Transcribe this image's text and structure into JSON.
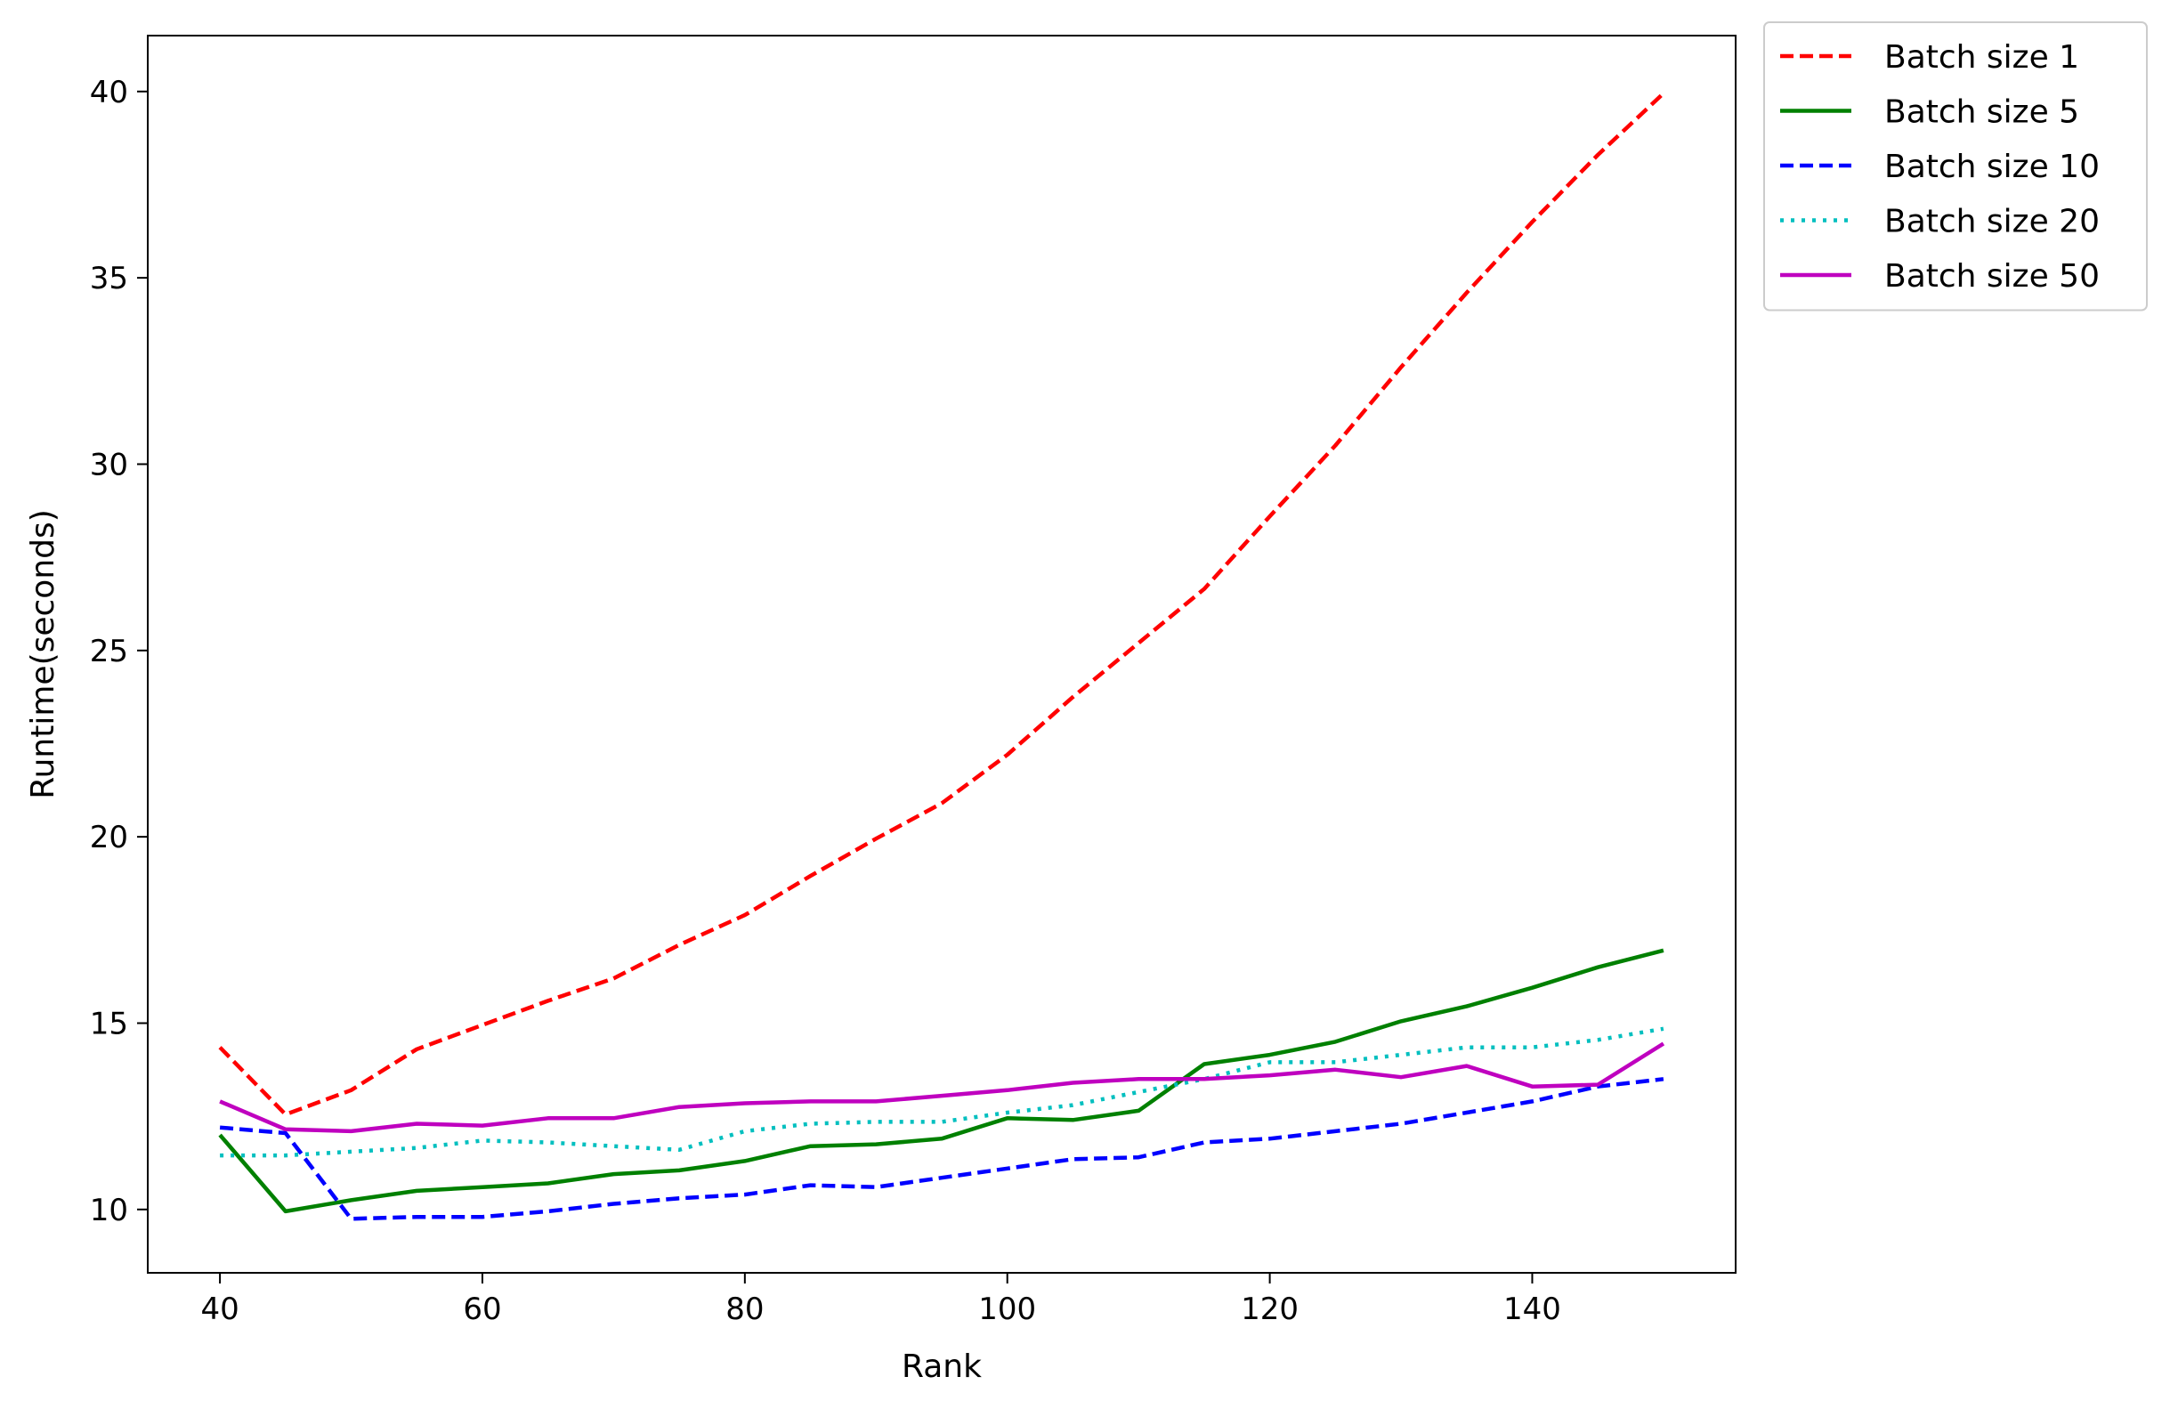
{
  "chart_data": {
    "type": "line",
    "title": "",
    "xlabel": "Rank",
    "ylabel": "Runtime(seconds)",
    "xlim": [
      34.5,
      155.5
    ],
    "ylim": [
      8.3,
      41.5
    ],
    "xticks": [
      40,
      60,
      80,
      100,
      120,
      140
    ],
    "yticks": [
      10,
      15,
      20,
      25,
      30,
      35,
      40
    ],
    "grid": false,
    "legend_position": "outside-top-right",
    "x": [
      40,
      45,
      50,
      55,
      60,
      65,
      70,
      75,
      80,
      85,
      90,
      95,
      100,
      105,
      110,
      115,
      120,
      125,
      130,
      135,
      140,
      145,
      150
    ],
    "series": [
      {
        "name": "Batch size 1",
        "color": "#ff0000",
        "style": "dashed",
        "values": [
          14.35,
          12.55,
          13.2,
          14.3,
          14.95,
          15.6,
          16.2,
          17.1,
          17.9,
          18.95,
          19.95,
          20.9,
          22.2,
          23.75,
          25.2,
          26.65,
          28.6,
          30.5,
          32.6,
          34.6,
          36.5,
          38.3,
          39.95
        ]
      },
      {
        "name": "Batch size 5",
        "color": "#008000",
        "style": "solid",
        "values": [
          12.0,
          9.95,
          10.25,
          10.5,
          10.6,
          10.7,
          10.95,
          11.05,
          11.3,
          11.7,
          11.75,
          11.9,
          12.45,
          12.4,
          12.65,
          13.9,
          14.15,
          14.5,
          15.05,
          15.45,
          15.95,
          16.5,
          16.95
        ]
      },
      {
        "name": "Batch size 10",
        "color": "#0000ff",
        "style": "dashed",
        "values": [
          12.2,
          12.05,
          9.75,
          9.8,
          9.8,
          9.95,
          10.15,
          10.3,
          10.4,
          10.65,
          10.6,
          10.85,
          11.1,
          11.35,
          11.4,
          11.8,
          11.9,
          12.1,
          12.3,
          12.6,
          12.9,
          13.3,
          13.5
        ]
      },
      {
        "name": "Batch size 20",
        "color": "#00bfbf",
        "style": "dotted",
        "values": [
          11.45,
          11.45,
          11.55,
          11.65,
          11.85,
          11.8,
          11.7,
          11.6,
          12.1,
          12.3,
          12.35,
          12.35,
          12.6,
          12.8,
          13.15,
          13.5,
          13.95,
          13.95,
          14.15,
          14.35,
          14.35,
          14.55,
          14.85
        ]
      },
      {
        "name": "Batch size 50",
        "color": "#bf00bf",
        "style": "solid",
        "values": [
          12.9,
          12.15,
          12.1,
          12.3,
          12.25,
          12.45,
          12.45,
          12.75,
          12.85,
          12.9,
          12.9,
          13.05,
          13.2,
          13.4,
          13.5,
          13.5,
          13.6,
          13.75,
          13.55,
          13.85,
          13.3,
          13.35,
          14.45
        ]
      }
    ]
  }
}
